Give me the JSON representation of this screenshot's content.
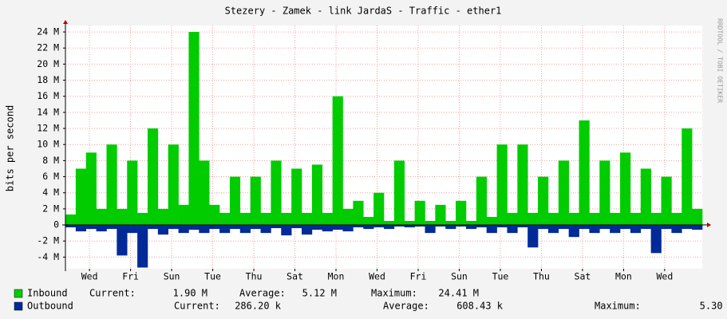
{
  "chart_data": {
    "type": "area",
    "title": "Stezery - Zamek - link JardaS - Traffic - ether1",
    "y_label": "bits per second",
    "watermark": "RRDTOOL / TOBI OETIKER",
    "xlim": [
      0,
      31
    ],
    "ylim": [
      -5.45,
      24.8
    ],
    "xticks": [
      {
        "value": 1.17,
        "label": "Wed"
      },
      {
        "value": 3.17,
        "label": "Fri"
      },
      {
        "value": 5.17,
        "label": "Sun"
      },
      {
        "value": 7.17,
        "label": "Tue"
      },
      {
        "value": 9.17,
        "label": "Thu"
      },
      {
        "value": 11.17,
        "label": "Sat"
      },
      {
        "value": 13.17,
        "label": "Mon"
      },
      {
        "value": 15.17,
        "label": "Wed"
      },
      {
        "value": 17.17,
        "label": "Fri"
      },
      {
        "value": 19.17,
        "label": "Sun"
      },
      {
        "value": 21.17,
        "label": "Tue"
      },
      {
        "value": 23.17,
        "label": "Thu"
      },
      {
        "value": 25.17,
        "label": "Sat"
      },
      {
        "value": 27.17,
        "label": "Mon"
      },
      {
        "value": 29.17,
        "label": "Wed"
      }
    ],
    "yticks": [
      {
        "value": -4,
        "label": "-4 M"
      },
      {
        "value": -2,
        "label": "-2 M"
      },
      0,
      {
        "value": 2,
        "label": "2 M"
      },
      {
        "value": 4,
        "label": "4 M"
      },
      {
        "value": 6,
        "label": "6 M"
      },
      {
        "value": 8,
        "label": "8 M"
      },
      {
        "value": 10,
        "label": "10 M"
      },
      {
        "value": 12,
        "label": "12 M"
      },
      {
        "value": 14,
        "label": "14 M"
      },
      {
        "value": 16,
        "label": "16 M"
      },
      {
        "value": 18,
        "label": "18 M"
      },
      {
        "value": 20,
        "label": "20 M"
      },
      {
        "value": 22,
        "label": "22 M"
      },
      {
        "value": 24,
        "label": "24 M"
      }
    ],
    "grid": true,
    "x": [
      0,
      0.5,
      1,
      1.5,
      2,
      2.5,
      3,
      3.5,
      4,
      4.5,
      5,
      5.5,
      6,
      6.5,
      7,
      7.5,
      8,
      8.5,
      9,
      9.5,
      10,
      10.5,
      11,
      11.5,
      12,
      12.5,
      13,
      13.5,
      14,
      14.5,
      15,
      15.5,
      16,
      16.5,
      17,
      17.5,
      18,
      18.5,
      19,
      19.5,
      20,
      20.5,
      21,
      21.5,
      22,
      22.5,
      23,
      23.5,
      24,
      24.5,
      25,
      25.5,
      26,
      26.5,
      27,
      27.5,
      28,
      28.5,
      29,
      29.5,
      30,
      30.5
    ],
    "series": [
      {
        "name": "Inbound",
        "color": "#00cc00",
        "values": [
          1.3,
          7,
          9,
          2,
          10,
          2,
          8,
          1.5,
          12,
          2,
          10,
          2.5,
          24,
          8,
          2.5,
          1.5,
          6,
          1.5,
          6,
          1.5,
          8,
          1.5,
          7,
          1.5,
          7.5,
          1.5,
          16,
          2,
          3,
          1,
          4,
          0.5,
          8,
          0.5,
          3,
          0.5,
          2.5,
          0.5,
          3,
          0.5,
          6,
          1,
          10,
          1.5,
          10,
          1.5,
          6,
          1.5,
          8,
          1.5,
          13,
          1.5,
          8,
          1.5,
          9,
          1.5,
          7,
          1.5,
          6,
          1.5,
          12,
          2
        ],
        "stats": [
          [
            "Current:",
            "1.90 M"
          ],
          [
            "Average:",
            "5.12 M"
          ],
          [
            "Maximum:",
            "24.41 M"
          ]
        ]
      },
      {
        "name": "Outbound",
        "color": "#002a97",
        "values": [
          -0.3,
          -0.8,
          -0.5,
          -0.8,
          -0.5,
          -3.8,
          -1,
          -5.3,
          -0.5,
          -1.2,
          -0.5,
          -1,
          -0.6,
          -1,
          -0.5,
          -1,
          -0.5,
          -1,
          -0.5,
          -1,
          -0.4,
          -1.3,
          -0.4,
          -1.2,
          -0.6,
          -0.8,
          -0.6,
          -0.8,
          -0.3,
          -0.5,
          -0.3,
          -0.5,
          -0.2,
          -0.3,
          -0.2,
          -1,
          -0.2,
          -0.5,
          -0.2,
          -0.5,
          -0.3,
          -1,
          -0.3,
          -1,
          -0.3,
          -2.8,
          -0.5,
          -1,
          -0.5,
          -1.5,
          -0.5,
          -1,
          -0.5,
          -1,
          -0.5,
          -1,
          -0.5,
          -3.5,
          -0.5,
          -1,
          -0.5,
          -0.6
        ],
        "stats": [
          [
            "Current:",
            "286.20 k"
          ],
          [
            "Average:",
            "608.43 k"
          ],
          [
            "Maximum:",
            "5.30 M"
          ]
        ]
      }
    ]
  }
}
